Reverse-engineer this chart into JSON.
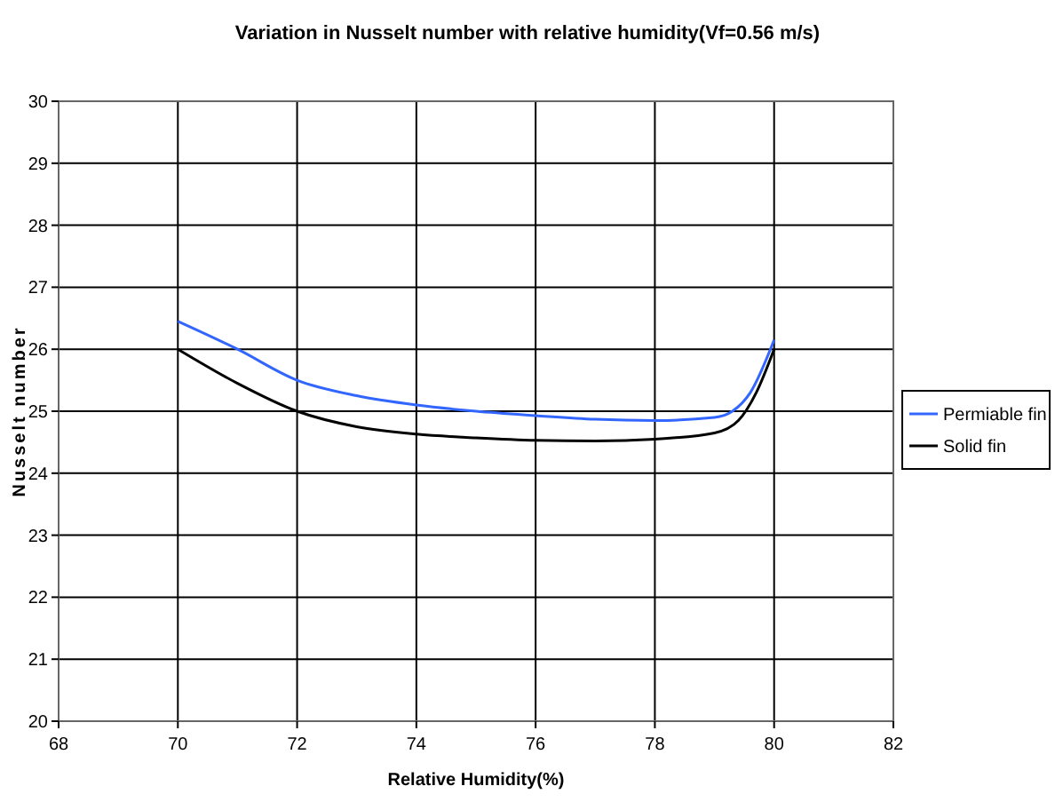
{
  "chart_data": {
    "type": "line",
    "title": "Variation in Nusselt number with relative humidity(Vf=0.56 m/s)",
    "xlabel": "Relative Humidity(%)",
    "ylabel": "Nusselt number",
    "xlim": [
      68,
      82
    ],
    "xticks": [
      68,
      70,
      72,
      74,
      76,
      78,
      80,
      82
    ],
    "ylim": [
      20,
      30
    ],
    "yticks": [
      20,
      21,
      22,
      23,
      24,
      25,
      26,
      27,
      28,
      29,
      30
    ],
    "grid": true,
    "legend": "right",
    "marker": "none",
    "line_style": "solid",
    "series": [
      {
        "name": "Permiable fin",
        "color": "#3366ff",
        "x": [
          70,
          71,
          72,
          73,
          74,
          75,
          76,
          77,
          78,
          79,
          79.3,
          79.6,
          80
        ],
        "values": [
          26.45,
          26.0,
          25.5,
          25.25,
          25.1,
          25.0,
          24.93,
          24.87,
          24.85,
          24.9,
          25.0,
          25.3,
          26.15
        ]
      },
      {
        "name": "Solid fin",
        "color": "#000000",
        "x": [
          70,
          71,
          72,
          73,
          74,
          75,
          76,
          77,
          78,
          79,
          79.4,
          79.7,
          80
        ],
        "values": [
          26.0,
          25.45,
          25.0,
          24.75,
          24.63,
          24.57,
          24.53,
          24.52,
          24.55,
          24.65,
          24.85,
          25.3,
          26.0
        ]
      }
    ]
  }
}
